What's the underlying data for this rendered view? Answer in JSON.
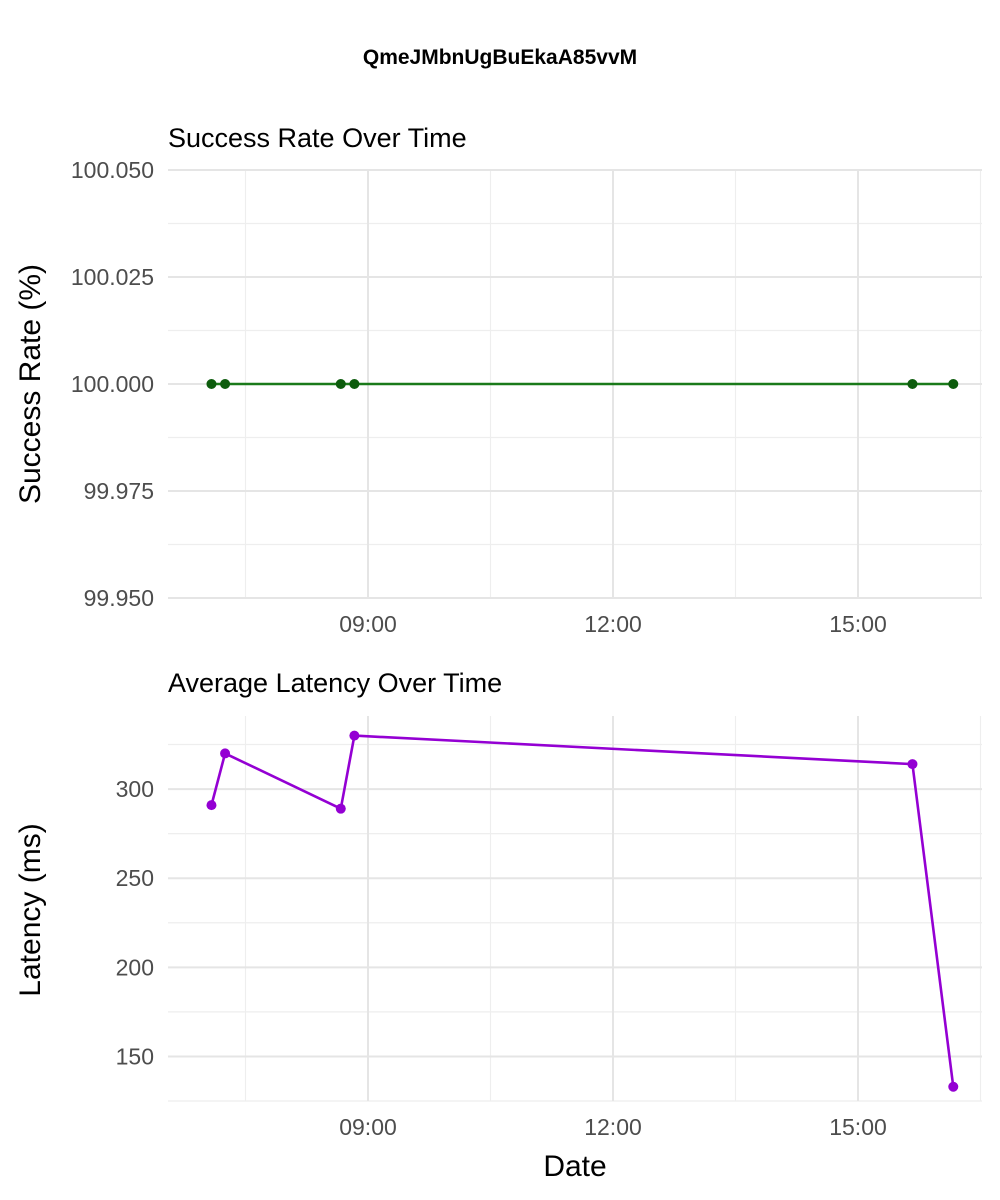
{
  "title": "QmeJMbnUgBuEkaA85vvM",
  "xlabel": "Date",
  "chart_data": [
    {
      "type": "line",
      "title": "Success Rate Over Time",
      "xlabel": "",
      "ylabel": "Success Rate (%)",
      "x": [
        "07:05",
        "07:15",
        "08:40",
        "08:50",
        "15:40",
        "16:10"
      ],
      "series": [
        {
          "values": [
            100.0,
            100.0,
            100.0,
            100.0,
            100.0,
            100.0
          ],
          "color": "#1a7a1a",
          "point_color": "#0d5c0d"
        }
      ],
      "ylim": [
        99.95,
        100.05
      ],
      "yticks": [
        99.95,
        99.975,
        100.0,
        100.025,
        100.05
      ],
      "ytick_labels": [
        "99.950",
        "99.975",
        "100.000",
        "100.025",
        "100.050"
      ],
      "xticks": [
        "09:00",
        "12:00",
        "15:00"
      ],
      "grid": true
    },
    {
      "type": "line",
      "title": "Average Latency Over Time",
      "xlabel": "Date",
      "ylabel": "Latency (ms)",
      "x": [
        "07:05",
        "07:15",
        "08:40",
        "08:50",
        "15:40",
        "16:10"
      ],
      "series": [
        {
          "values": [
            291,
            320,
            289,
            330,
            314,
            133
          ],
          "color": "#9400d3",
          "point_color": "#9400d3"
        }
      ],
      "ylim": [
        125,
        341
      ],
      "yticks": [
        150,
        200,
        250,
        300
      ],
      "ytick_labels": [
        "150",
        "200",
        "250",
        "300"
      ],
      "xticks": [
        "09:00",
        "12:00",
        "15:00"
      ],
      "grid": true
    }
  ]
}
